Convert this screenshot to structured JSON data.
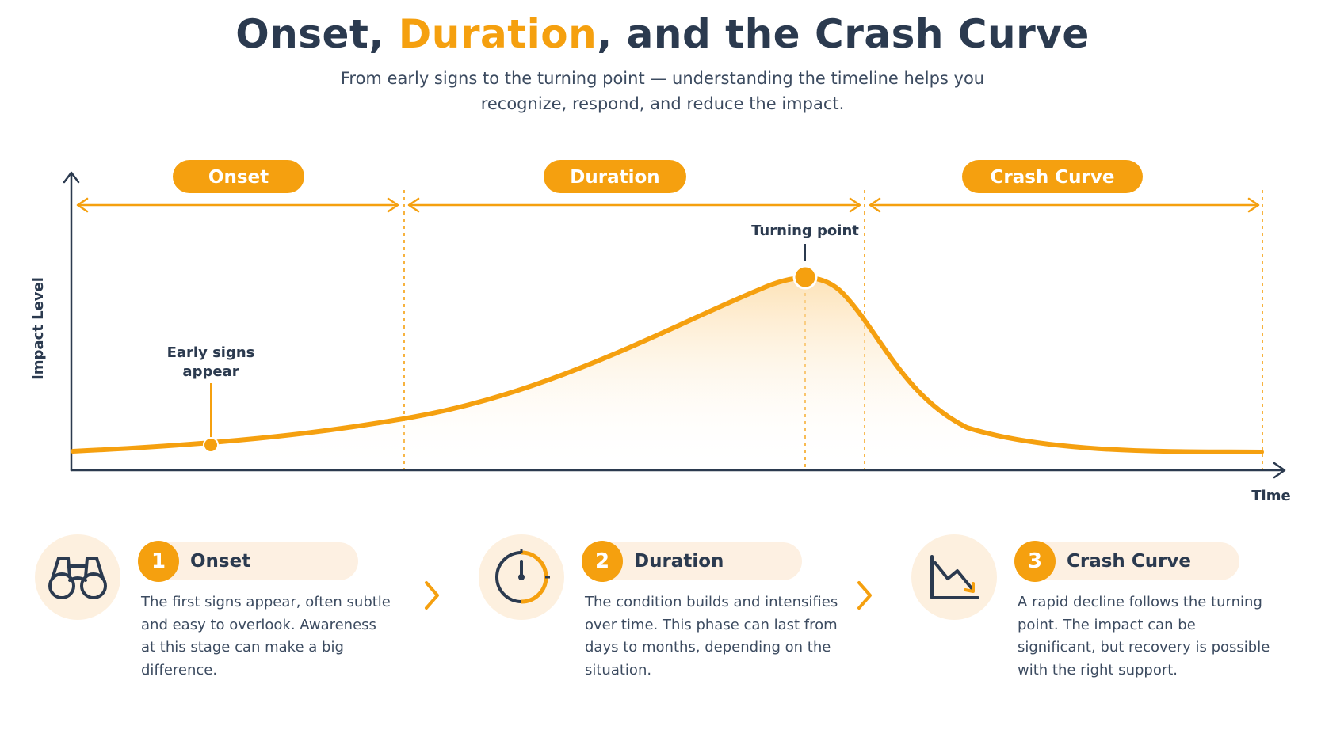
{
  "header": {
    "title_part1": "Onset, ",
    "title_accent": "Duration",
    "title_part2": ", and the Crash Curve",
    "subtitle": "From early signs to the turning point — understanding the timeline helps you recognize, respond, and reduce the impact."
  },
  "diagram": {
    "y_axis_label": "Impact Level",
    "x_axis_label": "Time",
    "phases": [
      {
        "label": "Onset"
      },
      {
        "label": "Duration"
      },
      {
        "label": "Crash Curve"
      }
    ],
    "annotations": {
      "early_signs_line1": "Early signs",
      "early_signs_line2": "appear",
      "turning_point": "Turning point"
    }
  },
  "cards": [
    {
      "number": "1",
      "title": "Onset",
      "icon": "binoculars-icon",
      "description": "The first signs appear, often subtle and easy to overlook. Awareness at this stage can make a big difference."
    },
    {
      "number": "2",
      "title": "Duration",
      "icon": "clock-icon",
      "description": "The condition builds and intensifies over time. This phase can last from days to months, depending on the situation."
    },
    {
      "number": "3",
      "title": "Crash Curve",
      "icon": "declining-chart-icon",
      "description": "A rapid decline follows the turning point. The impact can be significant, but recovery is possible with the right support."
    }
  ],
  "colors": {
    "accent": "#f5a00f",
    "navy": "#2b3a4f",
    "soft": "#fdf0df"
  }
}
